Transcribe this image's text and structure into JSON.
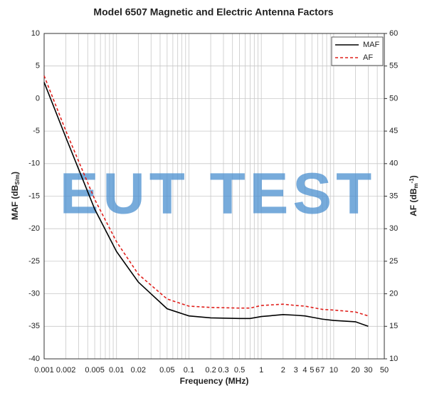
{
  "chart_data": {
    "type": "line",
    "title": "Model 6507 Magnetic and Electric Antenna Factors",
    "xlabel": "Frequency (MHz)",
    "ylabel_parts": [
      "MAF (dB",
      "S/m",
      ")"
    ],
    "y2label_parts": [
      "AF (dB",
      "m",
      "-1",
      ")"
    ],
    "watermark": "EUT TEST",
    "xscale": "log",
    "x": [
      0.001,
      0.002,
      0.005,
      0.01,
      0.02,
      0.05,
      0.1,
      0.2,
      0.5,
      0.7,
      1,
      2,
      3,
      4,
      5,
      7,
      10,
      20,
      30
    ],
    "series": [
      {
        "name": "MAF",
        "color": "#000000",
        "dash": false,
        "axis": "y",
        "values": [
          2.5,
          -6,
          -17,
          -23.5,
          -28.2,
          -32.3,
          -33.4,
          -33.7,
          -33.8,
          -33.8,
          -33.5,
          -33.2,
          -33.3,
          -33.4,
          -33.6,
          -33.9,
          -34.1,
          -34.3,
          -35
        ]
      },
      {
        "name": "AF",
        "color": "#e0201c",
        "dash": true,
        "axis": "y2",
        "values": [
          53.5,
          45,
          34.5,
          28,
          23,
          19.2,
          18.1,
          17.9,
          17.8,
          17.8,
          18.2,
          18.4,
          18.2,
          18.1,
          17.9,
          17.6,
          17.5,
          17.2,
          16.6
        ]
      }
    ],
    "xlim": [
      0.001,
      50
    ],
    "xticks": [
      0.001,
      0.002,
      0.005,
      0.01,
      0.02,
      0.05,
      0.1,
      0.2,
      0.3,
      0.5,
      1,
      2,
      3,
      4,
      5,
      6,
      7,
      10,
      20,
      30,
      50
    ],
    "xminor": [
      0.003,
      0.004,
      0.006,
      0.007,
      0.008,
      0.009,
      0.03,
      0.04,
      0.06,
      0.07,
      0.08,
      0.09,
      0.4,
      0.6,
      0.7,
      0.8,
      0.9,
      8,
      9,
      40
    ],
    "ylim": [
      -40,
      10
    ],
    "yticks": [
      -40,
      -35,
      -30,
      -25,
      -20,
      -15,
      -10,
      -5,
      0,
      5,
      10
    ],
    "y2lim": [
      10,
      60
    ],
    "y2ticks": [
      10,
      15,
      20,
      25,
      30,
      35,
      40,
      45,
      50,
      55,
      60
    ],
    "grid": true,
    "legend": "upper right"
  }
}
